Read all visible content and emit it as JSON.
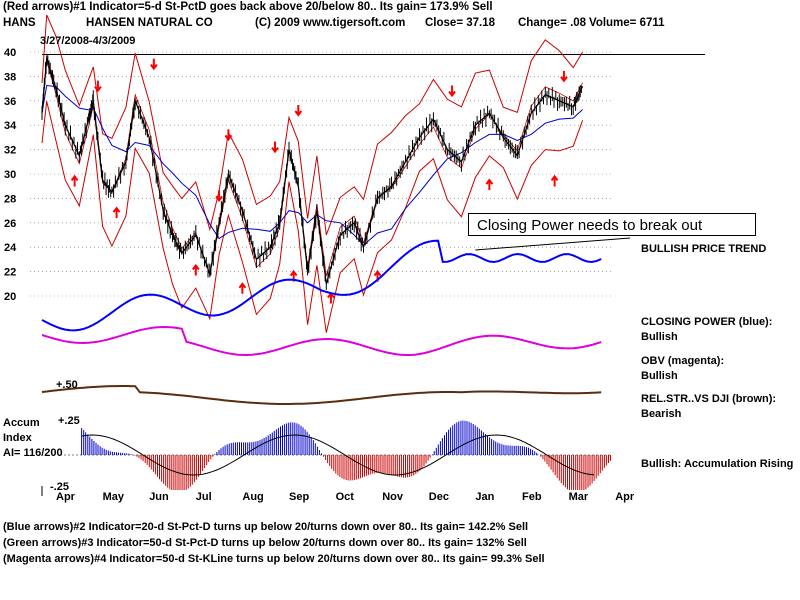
{
  "header": {
    "line1": "(Red arrows)#1 Indicator=5-d St-PctD goes back above 20/below 80.. Its gain= 173.9% Sell",
    "symbol": "HANS",
    "company": "HANSEN NATURAL CO",
    "copyright": "(C) 2009 www.tigersoft.com",
    "close": "Close=  37.18",
    "change": "Change= .08",
    "volume": "Volume=  6711",
    "date_range": "3/27/2008-4/3/2009"
  },
  "callout": "Closing Power needs to break out",
  "right_notes": {
    "trend": "BULLISH PRICE TREND",
    "cp_label": "CLOSING POWER (blue):",
    "cp_value": "Bullish",
    "obv_label": "OBV (magenta):",
    "obv_value": "Bullish",
    "rs_label": "REL.STR..VS DJI (brown):",
    "rs_value": "Bearish",
    "accum_note": "Bullish: Accumulation Rising"
  },
  "accum_panel": {
    "title": "Accum",
    "subtitle": "Index",
    "ai": "AI= 116/200",
    "top_tick": "+.25",
    "bottom_tick": "-.25",
    "rs_tick": "+.50"
  },
  "footer": {
    "line1": "(Blue arrows)#2 Indicator=20-d St-Pct-D turns up below 20/turns down over 80.. Its gain= 142.2% Sell",
    "line2": "(Green arrows)#3 Indicator=50-d St-Pct-D turns up below 20/turns down over 80.. Its gain= 132% Sell",
    "line3": "(Magenta arrows)#4 Indicator=50-d St-KLine turns up below 20/turns down over 80.. Its gain= 99.3% Sell"
  },
  "colors": {
    "price": "#000000",
    "band": "#cc0000",
    "ma": "#0000cc",
    "closing_power": "#0000ff",
    "obv": "#dd00dd",
    "rel_strength": "#5a2d0c",
    "accum_pos": "#0000cc",
    "accum_neg": "#cc0000"
  },
  "chart_data": {
    "type": "line",
    "y_ticks": [
      20,
      22,
      24,
      26,
      28,
      30,
      32,
      34,
      36,
      38,
      40
    ],
    "ylim": [
      19,
      41
    ],
    "months": [
      "Apr",
      "May",
      "Jun",
      "Jul",
      "Aug",
      "Sep",
      "Oct",
      "Nov",
      "Dec",
      "Jan",
      "Feb",
      "Mar",
      "Apr"
    ],
    "resistance_line": 39.8,
    "price_series": [
      {
        "m": 0.0,
        "v": 35
      },
      {
        "m": 0.1,
        "v": 39.5
      },
      {
        "m": 0.3,
        "v": 37
      },
      {
        "m": 0.5,
        "v": 34
      },
      {
        "m": 0.8,
        "v": 31.5
      },
      {
        "m": 1.0,
        "v": 34.5
      },
      {
        "m": 1.1,
        "v": 36
      },
      {
        "m": 1.3,
        "v": 29.5
      },
      {
        "m": 1.5,
        "v": 28.5
      },
      {
        "m": 1.8,
        "v": 31
      },
      {
        "m": 2.0,
        "v": 36
      },
      {
        "m": 2.3,
        "v": 33
      },
      {
        "m": 2.6,
        "v": 27
      },
      {
        "m": 2.8,
        "v": 25
      },
      {
        "m": 3.0,
        "v": 23.5
      },
      {
        "m": 3.3,
        "v": 25
      },
      {
        "m": 3.6,
        "v": 21.8
      },
      {
        "m": 3.8,
        "v": 26
      },
      {
        "m": 4.0,
        "v": 30
      },
      {
        "m": 4.3,
        "v": 27
      },
      {
        "m": 4.6,
        "v": 23
      },
      {
        "m": 4.9,
        "v": 24
      },
      {
        "m": 5.1,
        "v": 26
      },
      {
        "m": 5.3,
        "v": 32
      },
      {
        "m": 5.5,
        "v": 29
      },
      {
        "m": 5.7,
        "v": 22
      },
      {
        "m": 5.9,
        "v": 27
      },
      {
        "m": 6.1,
        "v": 21
      },
      {
        "m": 6.4,
        "v": 25
      },
      {
        "m": 6.7,
        "v": 26
      },
      {
        "m": 6.9,
        "v": 24
      },
      {
        "m": 7.2,
        "v": 28
      },
      {
        "m": 7.5,
        "v": 29
      },
      {
        "m": 7.8,
        "v": 31
      },
      {
        "m": 8.1,
        "v": 33
      },
      {
        "m": 8.4,
        "v": 34.5
      },
      {
        "m": 8.7,
        "v": 32
      },
      {
        "m": 9.0,
        "v": 31
      },
      {
        "m": 9.3,
        "v": 34
      },
      {
        "m": 9.6,
        "v": 35
      },
      {
        "m": 9.9,
        "v": 33
      },
      {
        "m": 10.2,
        "v": 31.5
      },
      {
        "m": 10.5,
        "v": 35
      },
      {
        "m": 10.8,
        "v": 36.5
      },
      {
        "m": 11.1,
        "v": 36
      },
      {
        "m": 11.4,
        "v": 35.5
      },
      {
        "m": 11.6,
        "v": 37.2
      }
    ]
  }
}
